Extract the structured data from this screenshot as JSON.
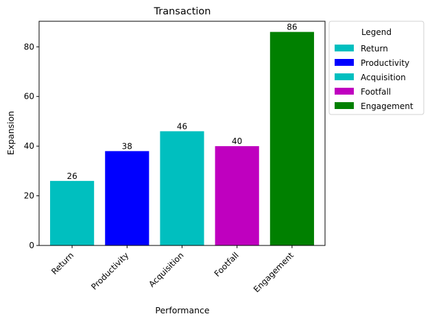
{
  "chart_data": {
    "type": "bar",
    "title": "Transaction",
    "xlabel": "Performance",
    "ylabel": "Expansion",
    "categories": [
      "Return",
      "Productivity",
      "Acquisition",
      "Footfall",
      "Engagement"
    ],
    "values": [
      26,
      38,
      46,
      40,
      86
    ],
    "value_labels": [
      "26",
      "38",
      "46",
      "40",
      "86"
    ],
    "colors": [
      "#00bfbf",
      "#0000ff",
      "#00bfbf",
      "#bf00bf",
      "#008000"
    ],
    "ylim": [
      0,
      90.3
    ],
    "yticks": [
      0,
      20,
      40,
      60,
      80
    ],
    "ytick_labels": [
      "0",
      "20",
      "40",
      "60",
      "80"
    ],
    "grid": false,
    "legend": {
      "title": "Legend",
      "placement": "outside-top-right",
      "entries": [
        "Return",
        "Productivity",
        "Acquisition",
        "Footfall",
        "Engagement"
      ]
    }
  }
}
